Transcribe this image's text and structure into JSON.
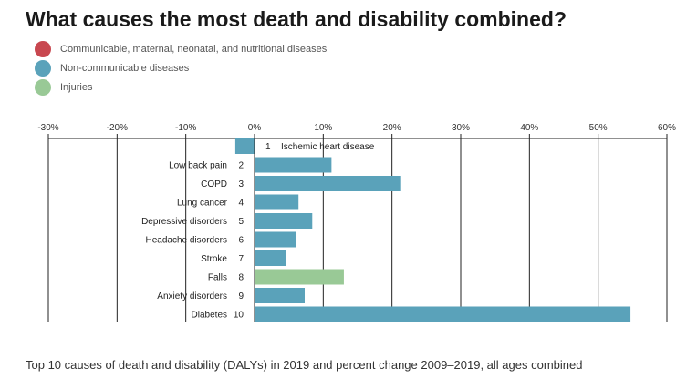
{
  "title": "What causes the most death and disability combined?",
  "legend": [
    {
      "label": "Communicable, maternal, neonatal, and nutritional diseases",
      "color": "#c8474f"
    },
    {
      "label": "Non-communicable diseases",
      "color": "#5aa2ba"
    },
    {
      "label": "Injuries",
      "color": "#99c996"
    }
  ],
  "footer": "Top 10 causes of death and disability (DALYs) in 2019 and percent change 2009–2019, all ages combined",
  "chart_data": {
    "type": "bar",
    "orientation": "horizontal",
    "x_ticks": [
      "-30%",
      "-20%",
      "-10%",
      "0%",
      "10%",
      "20%",
      "30%",
      "40%",
      "50%",
      "60%"
    ],
    "xlim": [
      -30,
      60
    ],
    "grid": true,
    "categories": [
      {
        "rank": "1",
        "name": "Ischemic heart disease",
        "value": -2.8,
        "group": 1
      },
      {
        "rank": "2",
        "name": "Low back pain",
        "value": 11.2,
        "group": 1
      },
      {
        "rank": "3",
        "name": "COPD",
        "value": 21.2,
        "group": 1
      },
      {
        "rank": "4",
        "name": "Lung cancer",
        "value": 6.4,
        "group": 1
      },
      {
        "rank": "5",
        "name": "Depressive disorders",
        "value": 8.4,
        "group": 1
      },
      {
        "rank": "6",
        "name": "Headache disorders",
        "value": 6.0,
        "group": 1
      },
      {
        "rank": "7",
        "name": "Stroke",
        "value": 4.6,
        "group": 1
      },
      {
        "rank": "8",
        "name": "Falls",
        "value": 13.0,
        "group": 2
      },
      {
        "rank": "9",
        "name": "Anxiety disorders",
        "value": 7.3,
        "group": 1
      },
      {
        "rank": "10",
        "name": "Diabetes",
        "value": 54.7,
        "group": 1
      }
    ]
  }
}
